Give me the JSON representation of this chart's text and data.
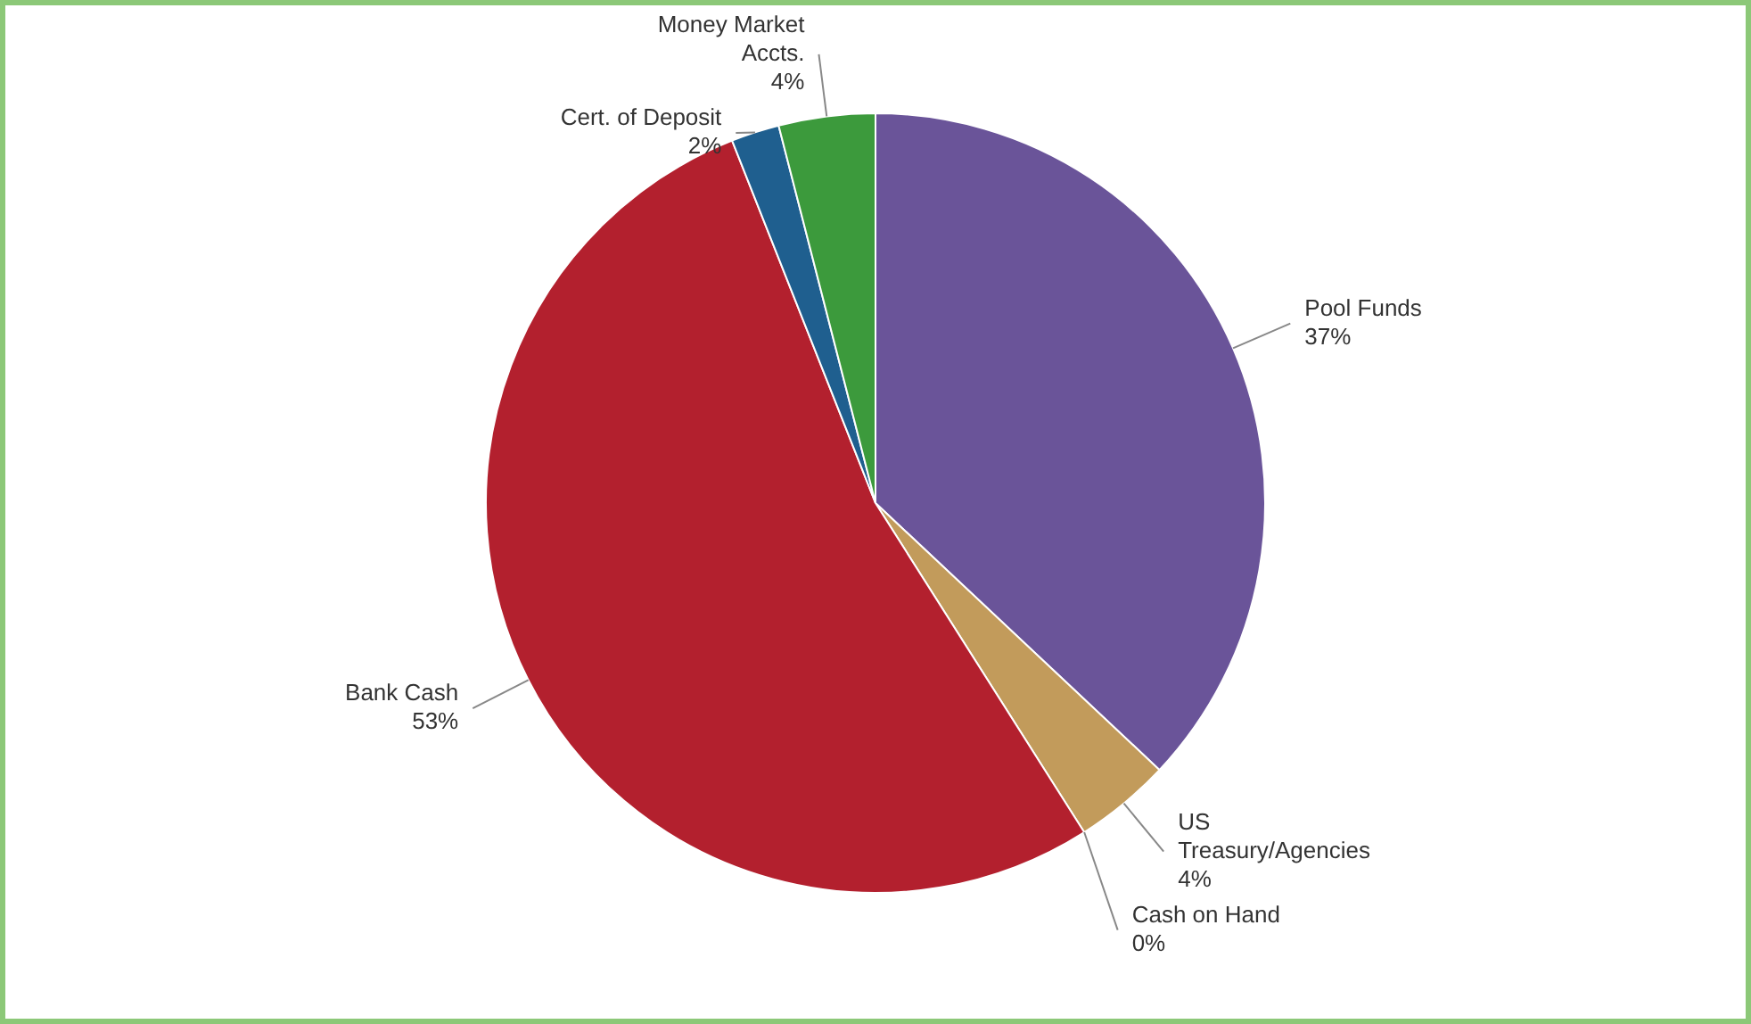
{
  "chart_data": {
    "type": "pie",
    "categories": [
      "Pool Funds",
      "US Treasury/Agencies",
      "Cash on Hand",
      "Bank Cash",
      "Cert. of Deposit",
      "Money Market Accts."
    ],
    "values": [
      37,
      4,
      0,
      53,
      2,
      4
    ],
    "colors": [
      "#6a5499",
      "#c29b5b",
      "#4a3a1c",
      "#b3202e",
      "#1f5f8f",
      "#3c9a3c"
    ],
    "legend": false,
    "value_labels": [
      "37%",
      "4%",
      "0%",
      "53%",
      "2%",
      "4%"
    ]
  }
}
